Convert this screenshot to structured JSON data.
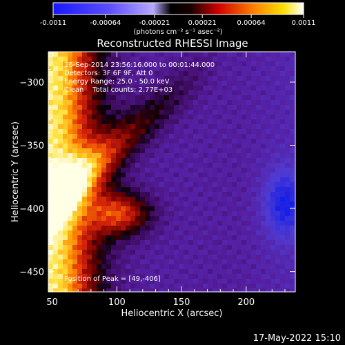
{
  "colorbar": {
    "tick_labels": [
      "-0.0011",
      "-0.00064",
      "-0.00021",
      "0.00021",
      "0.00064",
      "0.0011"
    ],
    "tick_values": [
      -0.0011,
      -0.00064,
      -0.00021,
      0.00021,
      0.00064,
      0.0011
    ],
    "range": [
      -0.0011,
      0.0011
    ],
    "units_label": "(photons cm⁻² s⁻¹ asec⁻²)"
  },
  "info": {
    "line1": "26-Sep-2014 23:56:16.000 to 00:01:44.000",
    "line2": "Detectors: 3F 6F 9F, Att 0",
    "line3": "Energy Range: 25.0 - 50.0 keV",
    "line4": "Clean    Total counts: 2.77E+03",
    "peak": "Position of Peak = [49,-406]"
  },
  "timestamp": "17-May-2022 15:10",
  "chart_data": {
    "type": "heatmap",
    "title": "Reconstructed RHESSI Image",
    "xlabel": "Heliocentric X (arcsec)",
    "ylabel": "Heliocentric Y (arcsec)",
    "xlim": [
      47,
      238
    ],
    "ylim": [
      -466,
      -276
    ],
    "x_ticks": [
      50,
      100,
      150,
      200
    ],
    "y_ticks": [
      -300,
      -350,
      -400,
      -450
    ],
    "x_tick_labels": [
      "50",
      "100",
      "150",
      "200"
    ],
    "y_tick_labels": [
      "-300",
      "-350",
      "-400",
      "-450"
    ],
    "colorscale": "blue-white-black-red-yellow-white",
    "peak_position": [
      49,
      -406
    ],
    "grid": false
  },
  "colors": {
    "background": "#000000",
    "text": "#ffffff"
  }
}
